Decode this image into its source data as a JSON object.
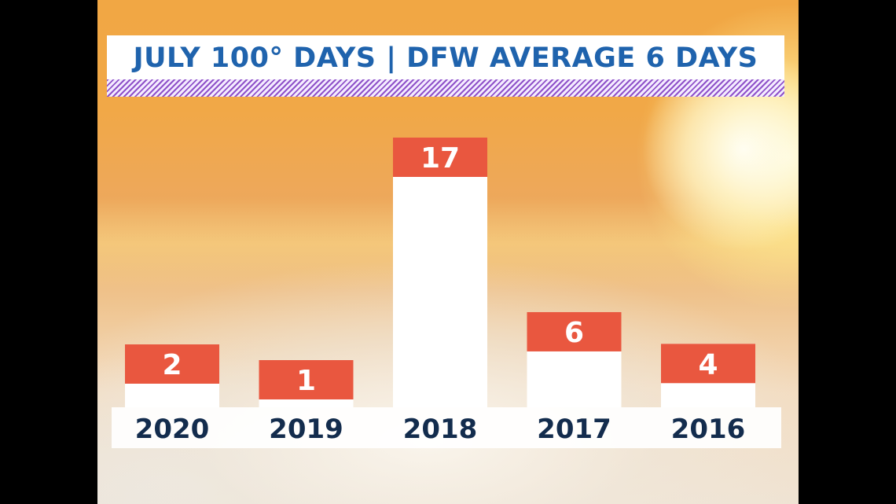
{
  "chart_data": {
    "type": "bar",
    "title": "JULY 100° DAYS | DFW AVERAGE 6 DAYS",
    "categories": [
      "2020",
      "2019",
      "2018",
      "2017",
      "2016"
    ],
    "values": [
      2,
      1,
      17,
      6,
      4
    ],
    "xlabel": "",
    "ylabel": "",
    "ylim": [
      0,
      17
    ],
    "grid": false,
    "legend": "none"
  },
  "colors": {
    "title_text": "#1f63ad",
    "bar_cap": "#e9573f",
    "bar_body": "#ffffff",
    "year_text": "#132c4d"
  }
}
